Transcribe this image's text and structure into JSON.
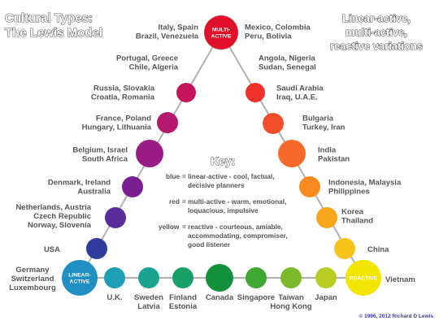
{
  "title_line1": "Cultural Types:",
  "title_line2": "The Lewis Model",
  "subtitle_line1": "Linear-active,",
  "subtitle_line2": "multi-active,",
  "subtitle_line3": "reactive variations",
  "vertices": {
    "multi_active": "MULTI-\nACTIVE",
    "linear_active": "LINEAR-\nACTIVE",
    "reactive": "REACTIVE"
  },
  "left_side": [
    {
      "lines": [
        "Italy, Spain",
        "Brazil, Venezuela"
      ],
      "color": "#cc1240"
    },
    {
      "lines": [
        "Portugal, Greece",
        "Chile, Algeria"
      ],
      "color": "#c4155a"
    },
    {
      "lines": [
        "Russia, Slovakia",
        "Croatia, Romania"
      ],
      "color": "#b5196f"
    },
    {
      "lines": [
        "France, Poland",
        "Hungary, Lithuania"
      ],
      "color": "#9a1d86"
    },
    {
      "lines": [
        "Belgium, Israel",
        "South Africa"
      ],
      "color": "#7a1f92"
    },
    {
      "lines": [
        "Denmark, Ireland",
        "Australia"
      ],
      "color": "#5a2e9a"
    },
    {
      "lines": [
        "Netherlands, Austria",
        "Czech Republic",
        "Norway, Slovenia"
      ],
      "color": "#2f3c9c"
    },
    {
      "lines": [
        "USA"
      ],
      "color": "#1f57a8"
    }
  ],
  "right_side": [
    {
      "lines": [
        "Mexico, Colombia",
        "Peru, Bolivia"
      ],
      "color": "#ee1c24"
    },
    {
      "lines": [
        "Angola, Nigeria",
        "Sudan, Senegal"
      ],
      "color": "#f0302a"
    },
    {
      "lines": [
        "Saudi Arabia",
        "Iraq, U.A.E."
      ],
      "color": "#f34e2b"
    },
    {
      "lines": [
        "Bulgaria",
        "Turkey, Iran"
      ],
      "color": "#f56a2a"
    },
    {
      "lines": [
        "India",
        "Pakistan"
      ],
      "color": "#f88a20"
    },
    {
      "lines": [
        "Indonesia, Malaysia",
        "Philippines"
      ],
      "color": "#f8a61c"
    },
    {
      "lines": [
        "Korea",
        "Thailand"
      ],
      "color": "#f8c21a"
    },
    {
      "lines": [
        "China"
      ],
      "color": "#f3da1e"
    }
  ],
  "bottom_side": [
    {
      "lines": [
        "U.K."
      ],
      "color": "#1e9fb5"
    },
    {
      "lines": [
        "Sweden",
        "Latvia"
      ],
      "color": "#1aa390"
    },
    {
      "lines": [
        "Finland",
        "Estonia"
      ],
      "color": "#18a068"
    },
    {
      "lines": [
        "Canada"
      ],
      "color": "#13913a"
    },
    {
      "lines": [
        "Singapore"
      ],
      "color": "#3da732"
    },
    {
      "lines": [
        "Taiwan",
        "Hong Kong"
      ],
      "color": "#7cb92a"
    },
    {
      "lines": [
        "Japan"
      ],
      "color": "#b9cc24"
    }
  ],
  "labels": {
    "linear_countries": [
      "Germany",
      "Switzerland",
      "Luxembourg"
    ],
    "reactive_country": "Vietnam"
  },
  "key": {
    "heading": "Key:",
    "blue_word": "blue",
    "blue_text": [
      "= linear-active - cool, factual,",
      "decisive planners"
    ],
    "red_word": "red",
    "red_text": [
      "= multi-active - warm, emotional,",
      "loquacious, impulsive"
    ],
    "yellow_word": "yellow",
    "yellow_text": [
      "= reactive - courteous, amiable,",
      "accommodating, compromiser,",
      "good listener"
    ]
  },
  "copyright": "© 1996, 2012 Richard D Lewis",
  "colors": {
    "multi_active": "#e0102a",
    "linear_active": "#1f8fc4",
    "reactive": "#f2e600",
    "line": "#b0b0b0",
    "text": "#555555",
    "blue_word": "#1f6fb5",
    "red_word": "#d0102a",
    "yellow_word": "#c8b800",
    "copyright": "#3b3bb0"
  }
}
